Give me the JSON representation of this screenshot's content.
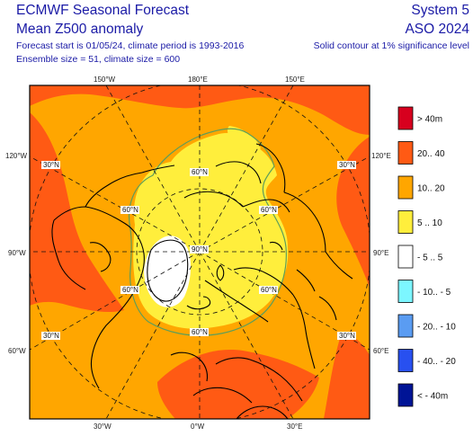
{
  "header": {
    "title": "ECMWF Seasonal Forecast",
    "subtitle": "Mean Z500 anomaly",
    "forecast_info": "Forecast start is 01/05/24, climate period is 1993-2016",
    "ensemble_info": "Ensemble size = 51, climate size = 600",
    "system": "System 5",
    "season": "ASO 2024",
    "contour_note": "Solid contour at 1% significance level"
  },
  "map": {
    "top_labels": [
      "150°W",
      "180°E",
      "150°E"
    ],
    "bottom_labels": [
      "30°W",
      "0°W",
      "30°E"
    ],
    "left_labels": [
      "120°W",
      "90°W",
      "60°W"
    ],
    "right_labels": [
      "120°E",
      "90°E",
      "60°E"
    ],
    "grid_labels": {
      "lat30": "30°N",
      "lat60": "60°N",
      "lat90": "90°N"
    }
  },
  "legend": {
    "unit": "m",
    "items": [
      {
        "label": "> 40m",
        "color": "#d7001e"
      },
      {
        "label": "20.. 40",
        "color": "#ff5a14"
      },
      {
        "label": "10.. 20",
        "color": "#ffa600"
      },
      {
        "label": "5 .. 10",
        "color": "#ffee3c"
      },
      {
        "label": "- 5 .. 5",
        "color": "#ffffff"
      },
      {
        "label": "- 10.. - 5",
        "color": "#7cf6ff"
      },
      {
        "label": "- 20.. - 10",
        "color": "#5a9cf2"
      },
      {
        "label": "- 40.. - 20",
        "color": "#2850f0"
      },
      {
        "label": "< - 40m",
        "color": "#001496"
      }
    ]
  },
  "colors": {
    "orange": "#ffa600",
    "red_orange": "#ff5a14",
    "yellow": "#ffee3c",
    "white": "#ffffff",
    "significance_contour": "#5d9e5a",
    "text": "#1a1aa6"
  }
}
